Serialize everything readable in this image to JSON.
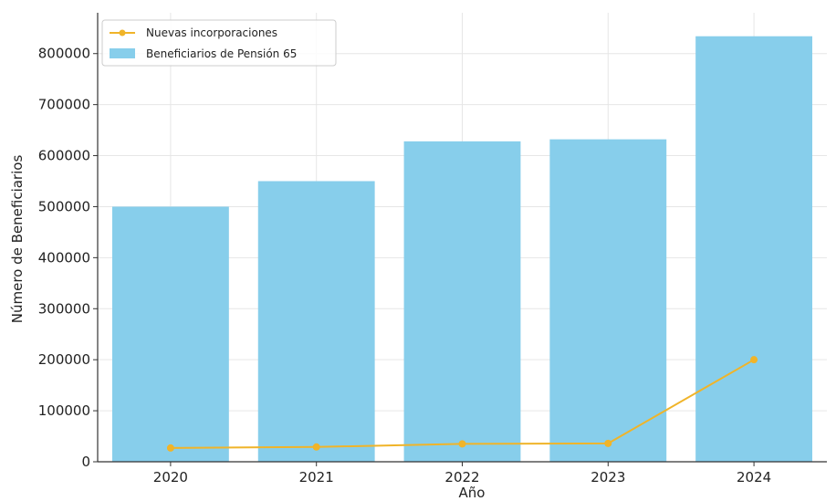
{
  "chart_data": {
    "type": "bar",
    "categories": [
      "2020",
      "2021",
      "2022",
      "2023",
      "2024"
    ],
    "series": [
      {
        "name": "Beneficiarios de Pensión 65",
        "type": "bar",
        "values": [
          500000,
          550000,
          628000,
          632000,
          834000
        ],
        "color": "#87ceeb"
      },
      {
        "name": "Nuevas incorporaciones",
        "type": "line",
        "values": [
          27000,
          29000,
          35000,
          36000,
          200000
        ],
        "color": "#f0b429"
      }
    ],
    "xlabel": "Año",
    "ylabel": "Número de Beneficiarios",
    "ylim": [
      0,
      880000
    ],
    "yticks": [
      0,
      100000,
      200000,
      300000,
      400000,
      500000,
      600000,
      700000,
      800000
    ],
    "ytick_labels": [
      "0",
      "100000",
      "200000",
      "300000",
      "400000",
      "500000",
      "600000",
      "700000",
      "800000"
    ],
    "grid": true,
    "legend_position": "top-left"
  }
}
